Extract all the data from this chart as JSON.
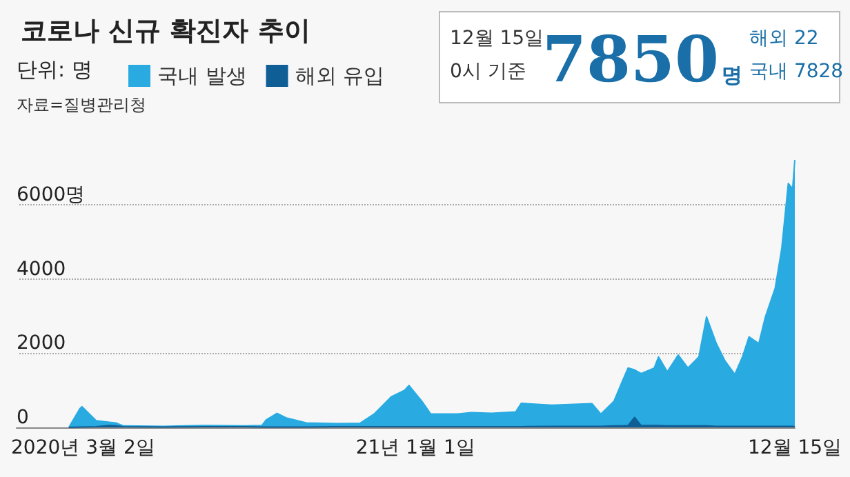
{
  "chart_data": {
    "type": "area",
    "stacked": true,
    "title": "코로나 신규 확진자 추이",
    "subtitle": "단위: 명",
    "annotations": [
      "자료=질병관리청",
      "12월 15일",
      "0시 기준",
      "7850명",
      "해외 22",
      "국내 7828"
    ],
    "legend": "top left",
    "grid": "y",
    "xlim": [
      "2020-01-01",
      "2021-12-15"
    ],
    "xticks": [
      {
        "value": "2020-03-02",
        "label": "2020년 3월 2일"
      },
      {
        "value": "2021-01-01",
        "label": "21년 1월 1일"
      },
      {
        "value": "2021-12-15",
        "label": "12월 15일"
      }
    ],
    "ylim": [
      0,
      7500
    ],
    "yticks": [
      0,
      2000,
      4000,
      {
        "value": 6000,
        "label": "6000명"
      }
    ],
    "x": [
      "2020-02-18",
      "2020-02-28",
      "2020-03-01",
      "2020-03-14",
      "2020-03-26",
      "2020-04-01",
      "2020-04-08",
      "2020-05-15",
      "2020-06-21",
      "2020-07-28",
      "2020-08-13",
      "2020-08-17",
      "2020-08-27",
      "2020-09-05",
      "2020-09-23",
      "2020-10-21",
      "2020-11-11",
      "2020-11-24",
      "2020-12-10",
      "2020-12-22",
      "2020-12-26",
      "2021-01-07",
      "2021-01-15",
      "2021-02-09",
      "2021-02-21",
      "2021-03-12",
      "2021-04-03",
      "2021-04-08",
      "2021-05-06",
      "2021-06-12",
      "2021-06-20",
      "2021-07-02",
      "2021-07-09",
      "2021-07-15",
      "2021-07-21",
      "2021-07-27",
      "2021-08-08",
      "2021-08-12",
      "2021-08-20",
      "2021-08-30",
      "2021-09-08",
      "2021-09-18",
      "2021-09-25",
      "2021-10-04",
      "2021-10-12",
      "2021-10-21",
      "2021-10-28",
      "2021-11-03",
      "2021-11-12",
      "2021-11-18",
      "2021-11-27",
      "2021-12-03",
      "2021-12-09",
      "2021-12-13",
      "2021-12-15"
    ],
    "series": [
      {
        "name": "해외 유입",
        "color": "#0f5f96",
        "values": [
          0,
          10,
          10,
          20,
          50,
          40,
          20,
          10,
          20,
          20,
          10,
          10,
          10,
          10,
          10,
          20,
          20,
          20,
          20,
          20,
          20,
          20,
          20,
          20,
          20,
          20,
          20,
          20,
          30,
          30,
          30,
          40,
          40,
          50,
          270,
          50,
          50,
          50,
          40,
          40,
          40,
          40,
          40,
          30,
          30,
          30,
          30,
          30,
          30,
          30,
          30,
          30,
          30,
          30,
          20
        ]
      },
      {
        "name": "국내 발생",
        "color": "#29abe2",
        "values": [
          0,
          490,
          550,
          160,
          90,
          80,
          20,
          20,
          30,
          20,
          40,
          190,
          370,
          240,
          110,
          80,
          90,
          340,
          810,
          980,
          1110,
          680,
          340,
          340,
          380,
          360,
          400,
          630,
          570,
          610,
          330,
          660,
          1150,
          1550,
          1280,
          1400,
          1550,
          1850,
          1460,
          1910,
          1560,
          1860,
          2940,
          2230,
          1760,
          1400,
          1870,
          2410,
          2230,
          2950,
          3720,
          4790,
          6540,
          6400,
          7180
        ]
      }
    ]
  }
}
